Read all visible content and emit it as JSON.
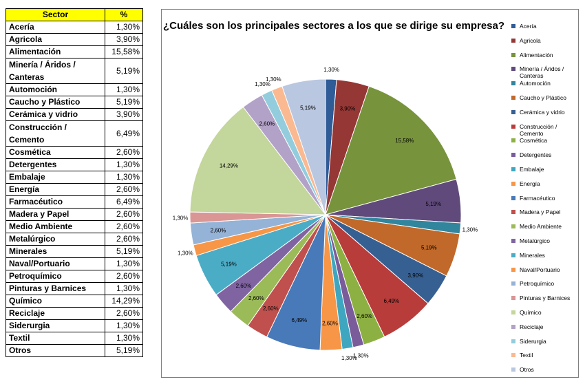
{
  "table": {
    "headers": {
      "sector": "Sector",
      "percent": "%"
    },
    "rows": [
      {
        "sector": "Acería",
        "percent": "1,30%"
      },
      {
        "sector": "Agricola",
        "percent": "3,90%"
      },
      {
        "sector": "Alimentación",
        "percent": "15,58%"
      },
      {
        "sector": "Minería / Áridos / Canteras",
        "percent": "5,19%"
      },
      {
        "sector": "Automoción",
        "percent": "1,30%"
      },
      {
        "sector": "Caucho y Plástico",
        "percent": "5,19%"
      },
      {
        "sector": "Cerámica y vidrio",
        "percent": "3,90%"
      },
      {
        "sector": "Construcción / Cemento",
        "percent": "6,49%"
      },
      {
        "sector": "Cosmética",
        "percent": "2,60%"
      },
      {
        "sector": "Detergentes",
        "percent": "1,30%"
      },
      {
        "sector": "Embalaje",
        "percent": "1,30%"
      },
      {
        "sector": "Energía",
        "percent": "2,60%"
      },
      {
        "sector": "Farmacéutico",
        "percent": "6,49%"
      },
      {
        "sector": "Madera y Papel",
        "percent": "2,60%"
      },
      {
        "sector": "Medio Ambiente",
        "percent": "2,60%"
      },
      {
        "sector": "Metalúrgico",
        "percent": "2,60%"
      },
      {
        "sector": "Minerales",
        "percent": "5,19%"
      },
      {
        "sector": "Naval/Portuario",
        "percent": "1,30%"
      },
      {
        "sector": "Petroquímico",
        "percent": "2,60%"
      },
      {
        "sector": "Pinturas y Barnices",
        "percent": "1,30%"
      },
      {
        "sector": "Químico",
        "percent": "14,29%"
      },
      {
        "sector": "Reciclaje",
        "percent": "2,60%"
      },
      {
        "sector": "Siderurgia",
        "percent": "1,30%"
      },
      {
        "sector": "Textil",
        "percent": "1,30%"
      },
      {
        "sector": "Otros",
        "percent": "5,19%"
      }
    ]
  },
  "chart_data": {
    "type": "pie",
    "title": "¿Cuáles son los principales sectores a los que se dirige su empresa?",
    "legend_position": "right",
    "categories": [
      "Acería",
      "Agricola",
      "Alimentación",
      "Minería / Áridos / Canteras",
      "Automoción",
      "Caucho y Plástico",
      "Cerámica y vidrio",
      "Construcción / Cemento",
      "Cosmética",
      "Detergentes",
      "Embalaje",
      "Energía",
      "Farmacéutico",
      "Madera y Papel",
      "Medio Ambiente",
      "Metalúrgico",
      "Minerales",
      "Naval/Portuario",
      "Petroquímico",
      "Pinturas y Barnices",
      "Químico",
      "Reciclaje",
      "Siderurgia",
      "Textil",
      "Otros"
    ],
    "values": [
      1.3,
      3.9,
      15.58,
      5.19,
      1.3,
      5.19,
      3.9,
      6.49,
      2.6,
      1.3,
      1.3,
      2.6,
      6.49,
      2.6,
      2.6,
      2.6,
      5.19,
      1.3,
      2.6,
      1.3,
      14.29,
      2.6,
      1.3,
      1.3,
      5.19
    ],
    "data_labels": [
      "1,30%",
      "3,90%",
      "15,58%",
      "5,19%",
      "1,30%",
      "5,19%",
      "3,90%",
      "6,49%",
      "2,60%",
      "1,30%",
      "1,30%",
      "2,60%",
      "6,49%",
      "2,60%",
      "2,60%",
      "2,60%",
      "5,19%",
      "1,30%",
      "2,60%",
      "1,30%",
      "14,29%",
      "2,60%",
      "1,30%",
      "1,30%",
      "5,19%"
    ],
    "colors": [
      "#2f5b97",
      "#953735",
      "#77933c",
      "#604a7b",
      "#31859c",
      "#c0692a",
      "#376092",
      "#b83c3a",
      "#8db043",
      "#7a5c9b",
      "#3fa6c0",
      "#f79646",
      "#4879b8",
      "#c0504d",
      "#9bbb59",
      "#8064a2",
      "#4bacc6",
      "#f79646",
      "#95b3d7",
      "#d99694",
      "#c3d69b",
      "#b3a2c7",
      "#93cddd",
      "#fab991",
      "#b9c7e0"
    ],
    "legend_colors": [
      "#2f5b97",
      "#953735",
      "#77933c",
      "#604a7b",
      "#31859c",
      "#c0692a",
      "#376092",
      "#b83c3a",
      "#8db043",
      "#7a5c9b",
      "#3fa6c0",
      "#f79646",
      "#4879b8",
      "#c0504d",
      "#9bbb59",
      "#8064a2",
      "#4bacc6",
      "#f79646",
      "#95b3d7",
      "#d99694",
      "#c3d69b",
      "#b3a2c7",
      "#93cddd",
      "#fab991",
      "#b9c7e0"
    ]
  }
}
